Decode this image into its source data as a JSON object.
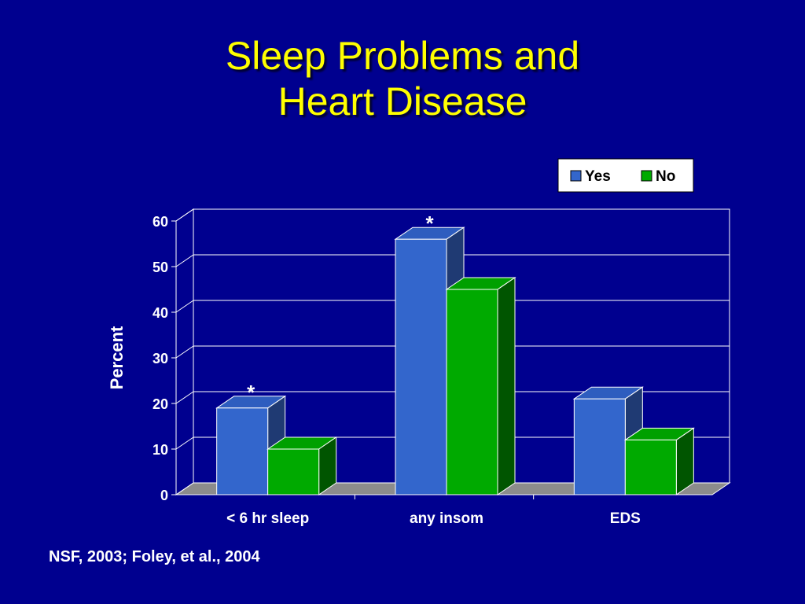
{
  "title": {
    "line1": "Sleep Problems and",
    "line2": "Heart Disease"
  },
  "footer": "NSF, 2003; Foley, et al., 2004",
  "colors": {
    "background": "#00008F",
    "title": "#FFFF00",
    "yes_front": "#3366CC",
    "yes_top": "#2E5DBF",
    "yes_side": "#1F3A73",
    "no_front": "#00AA00",
    "no_top": "#00A000",
    "no_side": "#005500",
    "floor": "#8C8C8C"
  },
  "chart_data": {
    "type": "bar",
    "categories": [
      "< 6 hr sleep",
      "any insom",
      "EDS"
    ],
    "series": [
      {
        "name": "Yes",
        "values": [
          19,
          56,
          21
        ],
        "color": "#3366CC"
      },
      {
        "name": "No",
        "values": [
          10,
          45,
          12
        ],
        "color": "#00AA00"
      }
    ],
    "ylabel": "Percent",
    "xlabel": "",
    "ylim": [
      0,
      60
    ],
    "yticks": [
      0,
      10,
      20,
      30,
      40,
      50,
      60
    ],
    "grid": true,
    "legend": "top-right",
    "annotations": [
      {
        "text": "*",
        "category": "< 6 hr sleep",
        "series": "Yes"
      },
      {
        "text": "*",
        "category": "any insom",
        "series": "Yes"
      }
    ],
    "style": "3d"
  }
}
